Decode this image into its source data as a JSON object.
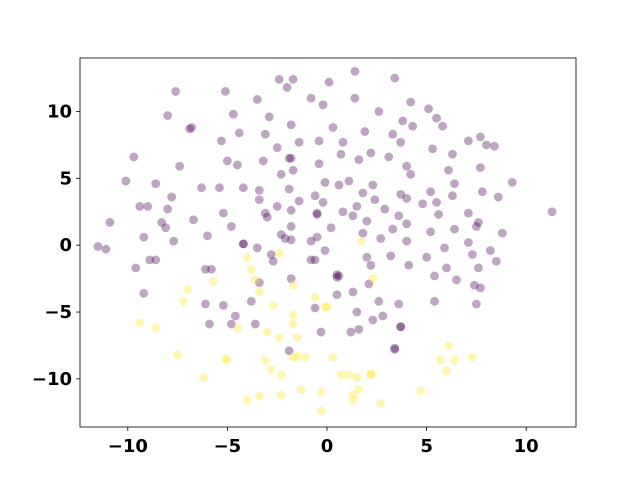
{
  "chart_data": {
    "type": "scatter",
    "title": "",
    "xlabel": "",
    "ylabel": "",
    "xlim": [
      -12.4,
      12.5
    ],
    "ylim": [
      -13.6,
      14.0
    ],
    "grid": false,
    "x_ticks": [
      -10,
      -5,
      0,
      5,
      10
    ],
    "x_tick_labels": [
      "−10",
      "−5",
      "0",
      "5",
      "10"
    ],
    "y_ticks": [
      -10,
      -5,
      0,
      5,
      10
    ],
    "y_tick_labels": [
      "−10",
      "−5",
      "0",
      "5",
      "10"
    ],
    "colors": {
      "class_0": "#440154",
      "class_1": "#fde725"
    },
    "opacity": 0.35,
    "series": [
      {
        "class": 0,
        "color": "#440154",
        "points": [
          [
            -2.4,
            12.4
          ],
          [
            -1.7,
            12.4
          ],
          [
            1.4,
            13.0
          ],
          [
            3.4,
            12.5
          ],
          [
            0.1,
            12.2
          ],
          [
            -2.0,
            11.8
          ],
          [
            -7.6,
            11.5
          ],
          [
            -5.1,
            11.5
          ],
          [
            -0.8,
            11.0
          ],
          [
            -3.5,
            10.9
          ],
          [
            1.4,
            11.0
          ],
          [
            -0.2,
            10.5
          ],
          [
            4.2,
            10.7
          ],
          [
            5.1,
            10.2
          ],
          [
            -8.0,
            9.7
          ],
          [
            -4.7,
            9.8
          ],
          [
            -2.9,
            9.6
          ],
          [
            2.6,
            10.0
          ],
          [
            5.5,
            9.5
          ],
          [
            3.8,
            9.3
          ],
          [
            -1.8,
            9.0
          ],
          [
            0.3,
            8.8
          ],
          [
            -6.8,
            8.8
          ],
          [
            1.9,
            8.5
          ],
          [
            -4.4,
            8.4
          ],
          [
            4.3,
            8.9
          ],
          [
            -3.1,
            8.3
          ],
          [
            -0.4,
            7.8
          ],
          [
            -5.3,
            7.8
          ],
          [
            0.8,
            7.7
          ],
          [
            3.3,
            8.3
          ],
          [
            5.8,
            8.9
          ],
          [
            7.1,
            7.8
          ],
          [
            7.7,
            8.1
          ],
          [
            -1.4,
            7.7
          ],
          [
            -2.5,
            7.3
          ],
          [
            3.7,
            7.7
          ],
          [
            -9.7,
            6.6
          ],
          [
            -5.0,
            6.3
          ],
          [
            -1.8,
            6.5
          ],
          [
            2.2,
            6.9
          ],
          [
            5.3,
            7.2
          ],
          [
            8.0,
            7.5
          ],
          [
            -3.2,
            6.3
          ],
          [
            0.7,
            6.8
          ],
          [
            -4.5,
            6.0
          ],
          [
            6.3,
            6.8
          ],
          [
            8.4,
            7.4
          ],
          [
            -0.4,
            6.1
          ],
          [
            -7.4,
            5.9
          ],
          [
            1.6,
            6.4
          ],
          [
            3.1,
            6.6
          ],
          [
            -1.7,
            5.6
          ],
          [
            4.0,
            5.9
          ],
          [
            6.1,
            5.6
          ],
          [
            -2.3,
            5.3
          ],
          [
            4.2,
            5.3
          ],
          [
            7.7,
            5.8
          ],
          [
            -10.1,
            4.8
          ],
          [
            -8.6,
            4.6
          ],
          [
            -0.1,
            4.7
          ],
          [
            1.1,
            4.8
          ],
          [
            2.3,
            4.5
          ],
          [
            -6.3,
            4.3
          ],
          [
            -5.4,
            4.3
          ],
          [
            -4.2,
            4.3
          ],
          [
            -1.9,
            4.2
          ],
          [
            0.6,
            4.5
          ],
          [
            6.4,
            4.6
          ],
          [
            9.3,
            4.7
          ],
          [
            -3.4,
            4.1
          ],
          [
            -0.6,
            3.7
          ],
          [
            1.8,
            3.9
          ],
          [
            3.7,
            3.8
          ],
          [
            5.2,
            4.0
          ],
          [
            7.8,
            4.0
          ],
          [
            -7.8,
            3.6
          ],
          [
            -3.4,
            3.4
          ],
          [
            -1.4,
            3.3
          ],
          [
            -0.2,
            3.2
          ],
          [
            2.4,
            3.4
          ],
          [
            4.0,
            3.5
          ],
          [
            6.3,
            3.7
          ],
          [
            8.6,
            3.6
          ],
          [
            -9.4,
            2.9
          ],
          [
            -8.0,
            2.7
          ],
          [
            -2.5,
            2.9
          ],
          [
            1.5,
            2.9
          ],
          [
            4.8,
            3.1
          ],
          [
            5.5,
            3.2
          ],
          [
            -9.0,
            2.9
          ],
          [
            -5.2,
            2.4
          ],
          [
            -3.1,
            2.4
          ],
          [
            -1.8,
            2.6
          ],
          [
            0.8,
            2.5
          ],
          [
            2.9,
            2.7
          ],
          [
            7.1,
            2.4
          ],
          [
            11.3,
            2.5
          ],
          [
            -10.9,
            1.7
          ],
          [
            -8.3,
            1.7
          ],
          [
            -6.7,
            1.9
          ],
          [
            -3.0,
            2.1
          ],
          [
            -0.5,
            2.3
          ],
          [
            1.3,
            2.2
          ],
          [
            3.6,
            2.2
          ],
          [
            5.6,
            2.3
          ],
          [
            7.6,
            1.7
          ],
          [
            -8.1,
            1.3
          ],
          [
            -4.8,
            1.4
          ],
          [
            -1.8,
            1.4
          ],
          [
            0.2,
            1.3
          ],
          [
            2.0,
            1.8
          ],
          [
            4.0,
            1.6
          ],
          [
            6.4,
            1.2
          ],
          [
            7.5,
            1.4
          ],
          [
            -9.2,
            0.6
          ],
          [
            -6.0,
            0.7
          ],
          [
            -2.3,
            0.8
          ],
          [
            -0.5,
            0.6
          ],
          [
            1.8,
            0.9
          ],
          [
            3.3,
            1.2
          ],
          [
            5.2,
            1.0
          ],
          [
            8.8,
            0.9
          ],
          [
            -7.7,
            0.3
          ],
          [
            -4.2,
            0.1
          ],
          [
            -1.8,
            0.4
          ],
          [
            -0.8,
            0.3
          ],
          [
            2.7,
            0.5
          ],
          [
            4.0,
            0.3
          ],
          [
            7.1,
            0.2
          ],
          [
            -11.5,
            -0.1
          ],
          [
            -11.1,
            -0.3
          ],
          [
            -3.5,
            -0.2
          ],
          [
            -0.1,
            -0.4
          ],
          [
            5.9,
            -0.2
          ],
          [
            8.2,
            -0.4
          ],
          [
            -8.9,
            -1.1
          ],
          [
            -2.8,
            -0.7
          ],
          [
            -0.6,
            -1.1
          ],
          [
            2.0,
            -0.9
          ],
          [
            3.2,
            -0.8
          ],
          [
            5.0,
            -0.9
          ],
          [
            7.3,
            -0.7
          ],
          [
            -9.6,
            -1.7
          ],
          [
            -6.1,
            -1.8
          ],
          [
            -5.8,
            -1.8
          ],
          [
            2.2,
            -1.5
          ],
          [
            4.1,
            -1.5
          ],
          [
            6.0,
            -1.7
          ],
          [
            7.6,
            -1.7
          ],
          [
            8.5,
            -1.2
          ],
          [
            -8.6,
            -1.1
          ],
          [
            -1.8,
            -2.5
          ],
          [
            0.6,
            -2.3
          ],
          [
            5.4,
            -2.3
          ],
          [
            -9.2,
            -3.6
          ],
          [
            -3.4,
            -2.8
          ],
          [
            0.5,
            -2.2
          ],
          [
            2.1,
            -2.9
          ],
          [
            6.5,
            -2.6
          ],
          [
            7.4,
            -3.0
          ],
          [
            0.5,
            -3.7
          ],
          [
            1.3,
            -3.5
          ],
          [
            -6.1,
            -4.4
          ],
          [
            -5.2,
            -4.5
          ],
          [
            -3.8,
            -4.2
          ],
          [
            7.7,
            -3.2
          ],
          [
            2.6,
            -4.2
          ],
          [
            3.6,
            -4.4
          ],
          [
            5.4,
            -4.2
          ],
          [
            7.5,
            -4.4
          ],
          [
            -4.6,
            -5.3
          ],
          [
            -0.6,
            -4.7
          ],
          [
            1.5,
            -5.0
          ],
          [
            -5.9,
            -5.9
          ],
          [
            -4.8,
            -5.9
          ],
          [
            -3.6,
            -5.9
          ],
          [
            2.3,
            -5.6
          ],
          [
            2.8,
            -5.3
          ],
          [
            1.2,
            -6.5
          ],
          [
            1.6,
            -6.3
          ],
          [
            3.7,
            -6.1
          ],
          [
            -0.3,
            -6.5
          ],
          [
            3.4,
            -7.7
          ],
          [
            -1.9,
            -7.9
          ],
          [
            -0.8,
            -1.1
          ],
          [
            -2.7,
            -1.2
          ],
          [
            -6.9,
            8.7
          ],
          [
            -4.2,
            0.1
          ],
          [
            -1.9,
            6.5
          ],
          [
            -0.5,
            2.4
          ],
          [
            -2.1,
            0.5
          ],
          [
            0.5,
            -2.4
          ],
          [
            3.7,
            -6.1
          ],
          [
            3.4,
            -7.8
          ]
        ]
      },
      {
        "class": 1,
        "color": "#fde725",
        "points": [
          [
            -4.0,
            -0.9
          ],
          [
            -3.8,
            -1.8
          ],
          [
            -2.4,
            -0.6
          ],
          [
            1.7,
            0.3
          ],
          [
            -7.0,
            -3.3
          ],
          [
            -5.7,
            -2.7
          ],
          [
            -3.4,
            -3.5
          ],
          [
            -1.7,
            -3.0
          ],
          [
            -7.2,
            -4.2
          ],
          [
            -3.6,
            -2.6
          ],
          [
            2.3,
            -2.5
          ],
          [
            -0.6,
            -3.9
          ],
          [
            -2.7,
            -4.5
          ],
          [
            -1.7,
            -5.2
          ],
          [
            -0.1,
            -4.6
          ],
          [
            0.0,
            -4.6
          ],
          [
            -9.4,
            -5.8
          ],
          [
            -8.6,
            -6.2
          ],
          [
            -4.5,
            -6.2
          ],
          [
            -3.0,
            -6.5
          ],
          [
            -1.7,
            -5.9
          ],
          [
            -2.4,
            -6.9
          ],
          [
            -1.5,
            -6.9
          ],
          [
            -7.5,
            -8.2
          ],
          [
            -5.1,
            -8.5
          ],
          [
            -5.0,
            -8.6
          ],
          [
            -3.1,
            -8.6
          ],
          [
            -1.7,
            -8.4
          ],
          [
            -1.1,
            -8.4
          ],
          [
            0.3,
            -8.4
          ],
          [
            5.7,
            -8.6
          ],
          [
            6.4,
            -8.6
          ],
          [
            7.3,
            -8.4
          ],
          [
            6.1,
            -7.5
          ],
          [
            -2.8,
            -9.3
          ],
          [
            -2.3,
            -9.7
          ],
          [
            0.7,
            -9.7
          ],
          [
            1.5,
            -9.9
          ],
          [
            2.2,
            -9.6
          ],
          [
            6.0,
            -9.4
          ],
          [
            -6.2,
            -9.9
          ],
          [
            -1.3,
            -10.8
          ],
          [
            -0.3,
            -11.0
          ],
          [
            1.3,
            -11.2
          ],
          [
            1.6,
            -10.8
          ],
          [
            4.7,
            -10.9
          ],
          [
            -4.0,
            -11.6
          ],
          [
            -3.4,
            -11.3
          ],
          [
            -2.3,
            -11.2
          ],
          [
            1.3,
            -11.6
          ],
          [
            2.7,
            -11.8
          ],
          [
            -0.3,
            -12.4
          ],
          [
            -1.5,
            -8.3
          ],
          [
            2.2,
            -9.7
          ],
          [
            1.1,
            -9.7
          ]
        ]
      }
    ]
  }
}
